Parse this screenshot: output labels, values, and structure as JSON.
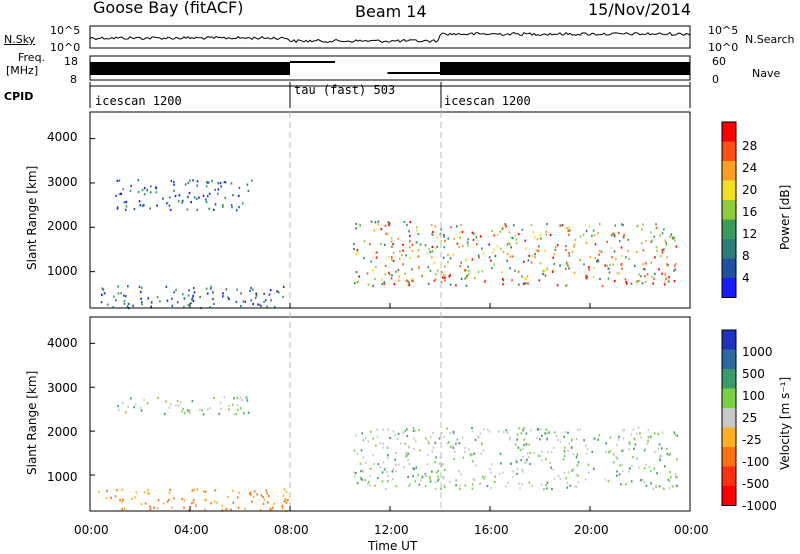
{
  "header": {
    "station": "Goose Bay (fitACF)",
    "beam": "Beam 14",
    "date": "15/Nov/2014"
  },
  "side_labels": {
    "nsky": "N.Sky",
    "nsky_top": "10^5",
    "nsky_bottom": "10^0",
    "freq": "Freq.",
    "freq_unit": "[MHz]",
    "freq_top": "18",
    "freq_bottom": "8",
    "cpid": "CPID",
    "nsearch": "N.Search",
    "nsearch_top": "10^5",
    "nsearch_bottom": "10^0",
    "nave": "Nave",
    "nave_top": "60",
    "nave_bottom": "0"
  },
  "cpid_segments": [
    {
      "label": "icescan 1200",
      "start_hour": 0,
      "end_hour": 8
    },
    {
      "label": "tau (fast) 503",
      "start_hour": 8,
      "end_hour": 14
    },
    {
      "label": "icescan 1200",
      "start_hour": 14,
      "end_hour": 24
    }
  ],
  "panels": {
    "ylabel": "Slant Range [km]",
    "xlabel": "Time UT",
    "yticks": [
      "1000",
      "2000",
      "3000",
      "4000"
    ],
    "xticks": [
      "00:00",
      "04:00",
      "08:00",
      "12:00",
      "16:00",
      "20:00",
      "00:00"
    ]
  },
  "power_scale": {
    "title": "Power [dB]",
    "labels": [
      "4",
      "8",
      "12",
      "16",
      "20",
      "24",
      "28"
    ],
    "colors": [
      "#1a1aff",
      "#2050a0",
      "#2e7d7d",
      "#3a9a5a",
      "#8fcc3a",
      "#f0e020",
      "#ffa020",
      "#ff5010",
      "#ff0000"
    ]
  },
  "velocity_scale": {
    "title": "Velocity [m s⁻¹]",
    "labels": [
      "1000",
      "500",
      "100",
      "25",
      "-25",
      "-100",
      "-500",
      "-1000"
    ],
    "colors": [
      "#2030c0",
      "#2a6aa0",
      "#3a9a6a",
      "#7ad040",
      "#c8c8c8",
      "#ffb020",
      "#ff7010",
      "#ff3010",
      "#ff0000"
    ]
  },
  "chart_data": [
    {
      "type": "heatmap",
      "title": "Power",
      "x_axis": "Time UT",
      "y_axis": "Slant Range [km]",
      "xlim_hours": [
        0,
        24
      ],
      "ylim_km": [
        180,
        4600
      ],
      "colorbar": "Power [dB]",
      "regions": [
        {
          "t0": 0.3,
          "t1": 8.0,
          "r0": 200,
          "r1": 700,
          "value": "low"
        },
        {
          "t0": 1.0,
          "t1": 6.5,
          "r0": 2400,
          "r1": 3100,
          "value": "low"
        },
        {
          "t0": 10.5,
          "t1": 14.0,
          "r0": 700,
          "r1": 2200,
          "value": "high"
        },
        {
          "t0": 14.0,
          "t1": 23.5,
          "r0": 700,
          "r1": 2100,
          "value": "high"
        }
      ]
    },
    {
      "type": "heatmap",
      "title": "Velocity",
      "x_axis": "Time UT",
      "y_axis": "Slant Range [km]",
      "xlim_hours": [
        0,
        24
      ],
      "ylim_km": [
        180,
        4600
      ],
      "colorbar": "Velocity [m s-1]",
      "regions": [
        {
          "t0": 0.3,
          "t1": 8.0,
          "r0": 200,
          "r1": 700,
          "value": "negative"
        },
        {
          "t0": 1.0,
          "t1": 6.5,
          "r0": 2400,
          "r1": 2800,
          "value": "near-zero"
        },
        {
          "t0": 10.5,
          "t1": 23.5,
          "r0": 700,
          "r1": 2100,
          "value": "near-zero"
        }
      ]
    }
  ]
}
